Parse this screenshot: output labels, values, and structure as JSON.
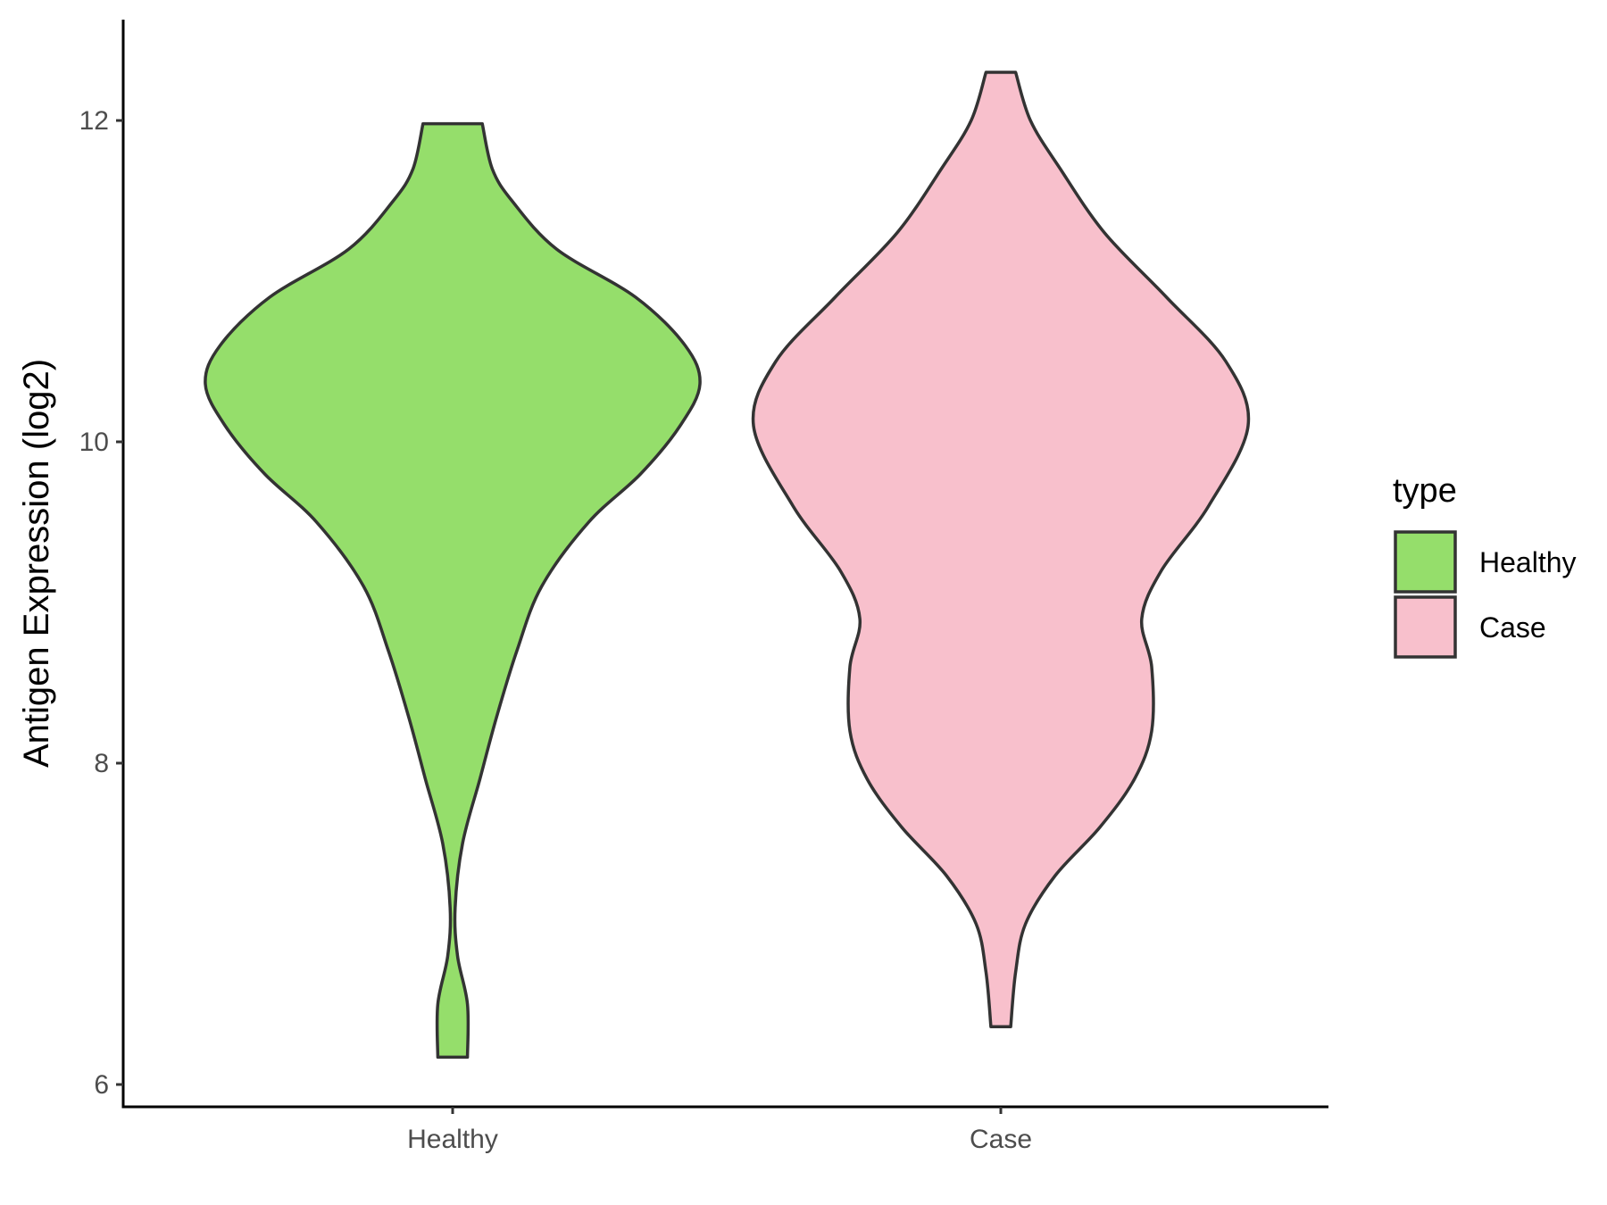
{
  "chart_data": {
    "type": "violin",
    "ylabel": "Antigen Expression (log2)",
    "xlabel": "",
    "ylim": [
      5.87,
      12.62
    ],
    "yticks": [
      6,
      8,
      10,
      12
    ],
    "grid": false,
    "categories": [
      "Healthy",
      "Case"
    ],
    "legend": {
      "title": "type",
      "placement": "right",
      "entries": [
        {
          "label": "Healthy",
          "color": "#95de6b"
        },
        {
          "label": "Case",
          "color": "#f8c0cc"
        }
      ]
    },
    "series": [
      {
        "name": "Healthy",
        "color": "#95de6b",
        "min": 6.17,
        "max": 11.98,
        "density_profile": [
          [
            6.17,
            0.06
          ],
          [
            6.5,
            0.06
          ],
          [
            6.8,
            0.02
          ],
          [
            7.1,
            0.01
          ],
          [
            7.5,
            0.04
          ],
          [
            7.9,
            0.11
          ],
          [
            8.3,
            0.18
          ],
          [
            8.7,
            0.26
          ],
          [
            9.1,
            0.36
          ],
          [
            9.5,
            0.55
          ],
          [
            9.8,
            0.76
          ],
          [
            10.1,
            0.92
          ],
          [
            10.36,
            1.0
          ],
          [
            10.6,
            0.94
          ],
          [
            10.9,
            0.74
          ],
          [
            11.2,
            0.42
          ],
          [
            11.5,
            0.24
          ],
          [
            11.7,
            0.16
          ],
          [
            11.98,
            0.12
          ]
        ]
      },
      {
        "name": "Case",
        "color": "#f8c0cc",
        "min": 6.36,
        "max": 12.3,
        "density_profile": [
          [
            6.36,
            0.04
          ],
          [
            6.7,
            0.06
          ],
          [
            7.0,
            0.1
          ],
          [
            7.3,
            0.22
          ],
          [
            7.6,
            0.4
          ],
          [
            7.9,
            0.54
          ],
          [
            8.2,
            0.61
          ],
          [
            8.6,
            0.61
          ],
          [
            8.9,
            0.57
          ],
          [
            9.2,
            0.65
          ],
          [
            9.6,
            0.84
          ],
          [
            10.1,
            1.0
          ],
          [
            10.5,
            0.91
          ],
          [
            10.9,
            0.67
          ],
          [
            11.3,
            0.42
          ],
          [
            11.7,
            0.24
          ],
          [
            12.0,
            0.12
          ],
          [
            12.3,
            0.06
          ]
        ]
      }
    ]
  }
}
